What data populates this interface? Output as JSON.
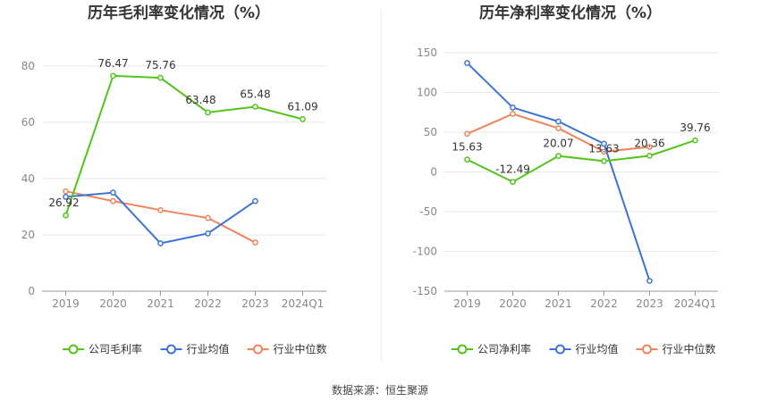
{
  "colors": {
    "company": "#52c41a",
    "industry_avg": "#3b73d6",
    "industry_median": "#f0845a",
    "grid": "#e8e8e8",
    "axis_text": "#888888"
  },
  "source_text": "数据来源：恒生聚源",
  "chart_data": [
    {
      "type": "line",
      "title": "历年毛利率变化情况（%）",
      "categories": [
        "2019",
        "2020",
        "2021",
        "2022",
        "2023",
        "2024Q1"
      ],
      "ylim": [
        0,
        85
      ],
      "yticks": [
        0,
        20,
        40,
        60,
        80
      ],
      "grid": true,
      "legend_position": "bottom",
      "series": [
        {
          "name": "公司毛利率",
          "key": "company",
          "values": [
            26.92,
            76.47,
            75.76,
            63.48,
            65.48,
            61.09
          ],
          "labels": [
            "26.92",
            "76.47",
            "75.76",
            "63.48",
            "65.48",
            "61.09"
          ]
        },
        {
          "name": "行业均值",
          "key": "industry_avg",
          "values": [
            33.5,
            35.0,
            17.0,
            20.5,
            32.0,
            null
          ]
        },
        {
          "name": "行业中位数",
          "key": "industry_median",
          "values": [
            35.5,
            32.0,
            28.8,
            26.0,
            17.3,
            null
          ]
        }
      ]
    },
    {
      "type": "line",
      "title": "历年净利率变化情况（%）",
      "categories": [
        "2019",
        "2020",
        "2021",
        "2022",
        "2023",
        "2024Q1"
      ],
      "ylim": [
        -150,
        150
      ],
      "yticks": [
        -150,
        -100,
        -50,
        0,
        50,
        100,
        150
      ],
      "grid": true,
      "legend_position": "bottom",
      "series": [
        {
          "name": "公司净利率",
          "key": "company",
          "values": [
            15.63,
            -12.49,
            20.07,
            13.63,
            20.36,
            39.76
          ],
          "labels": [
            "15.63",
            "-12.49",
            "20.07",
            "13.63",
            "20.36",
            "39.76"
          ]
        },
        {
          "name": "行业均值",
          "key": "industry_avg",
          "values": [
            137.0,
            81.0,
            63.5,
            35.5,
            -137.0,
            null
          ]
        },
        {
          "name": "行业中位数",
          "key": "industry_median",
          "values": [
            48.0,
            73.0,
            55.0,
            25.5,
            31.5,
            null
          ]
        }
      ]
    }
  ]
}
